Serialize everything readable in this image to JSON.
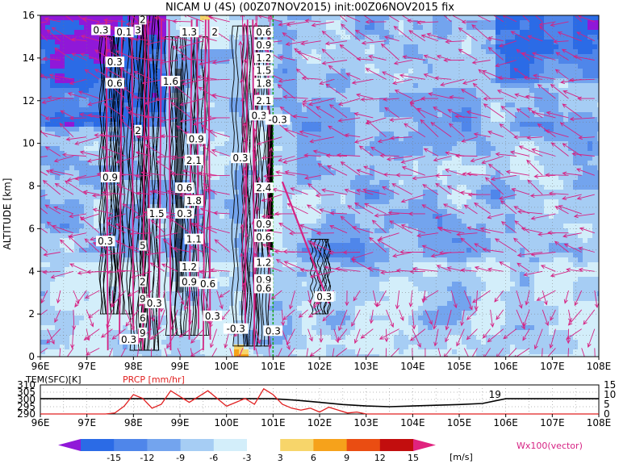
{
  "title": "NICAM U (4S) (00Z07NOV2015) init:00Z06NOV2015 fix",
  "chart_data": [
    {
      "type": "heatmap",
      "panel": "main",
      "ylabel": "ALTITUDE [km]",
      "x_ticks": [
        "96E",
        "97E",
        "98E",
        "99E",
        "100E",
        "101E",
        "102E",
        "103E",
        "104E",
        "105E",
        "106E",
        "107E",
        "108E"
      ],
      "y_ticks": [
        "0",
        "2",
        "4",
        "6",
        "8",
        "10",
        "12",
        "14",
        "16"
      ],
      "xlim": [
        96,
        108
      ],
      "ylim": [
        0,
        16
      ],
      "grid": true,
      "green_line_lon": 101.0,
      "shaded_field": "U [m/s]",
      "vectors": "Wx100 (vector)",
      "contour_labels": [
        {
          "lon": 97.3,
          "alt": 15.3,
          "text": "0.3"
        },
        {
          "lon": 97.8,
          "alt": 15.2,
          "text": "0.1"
        },
        {
          "lon": 98.1,
          "alt": 15.3,
          "text": "3"
        },
        {
          "lon": 98.2,
          "alt": 15.8,
          "text": "2"
        },
        {
          "lon": 99.2,
          "alt": 15.2,
          "text": "1.3"
        },
        {
          "lon": 99.75,
          "alt": 15.2,
          "text": "2"
        },
        {
          "lon": 97.6,
          "alt": 13.8,
          "text": "0.3"
        },
        {
          "lon": 97.6,
          "alt": 12.8,
          "text": "0.6"
        },
        {
          "lon": 98.8,
          "alt": 12.9,
          "text": "1.6"
        },
        {
          "lon": 100.8,
          "alt": 15.2,
          "text": "0.6"
        },
        {
          "lon": 100.8,
          "alt": 14.6,
          "text": "0.9"
        },
        {
          "lon": 100.8,
          "alt": 14.0,
          "text": "1.2"
        },
        {
          "lon": 100.8,
          "alt": 13.4,
          "text": "1.5"
        },
        {
          "lon": 100.8,
          "alt": 12.8,
          "text": "1.8"
        },
        {
          "lon": 100.8,
          "alt": 12.0,
          "text": "2.1"
        },
        {
          "lon": 100.7,
          "alt": 11.3,
          "text": "0.3"
        },
        {
          "lon": 101.1,
          "alt": 11.1,
          "text": "-0.3"
        },
        {
          "lon": 98.1,
          "alt": 10.6,
          "text": "2"
        },
        {
          "lon": 99.35,
          "alt": 10.2,
          "text": "0.9"
        },
        {
          "lon": 99.3,
          "alt": 9.2,
          "text": "2.1"
        },
        {
          "lon": 100.3,
          "alt": 9.3,
          "text": "0.3"
        },
        {
          "lon": 97.5,
          "alt": 8.4,
          "text": "0.9"
        },
        {
          "lon": 99.1,
          "alt": 7.9,
          "text": "0.6"
        },
        {
          "lon": 100.8,
          "alt": 7.9,
          "text": "2.4"
        },
        {
          "lon": 99.3,
          "alt": 7.3,
          "text": "1.8"
        },
        {
          "lon": 99.1,
          "alt": 6.7,
          "text": "0.3"
        },
        {
          "lon": 98.5,
          "alt": 6.7,
          "text": "1.5"
        },
        {
          "lon": 100.8,
          "alt": 6.2,
          "text": "0.9"
        },
        {
          "lon": 99.3,
          "alt": 5.5,
          "text": "1.1"
        },
        {
          "lon": 100.8,
          "alt": 5.6,
          "text": "0.6"
        },
        {
          "lon": 97.4,
          "alt": 5.4,
          "text": "0.3"
        },
        {
          "lon": 98.2,
          "alt": 5.2,
          "text": "5"
        },
        {
          "lon": 99.2,
          "alt": 4.2,
          "text": "1.2"
        },
        {
          "lon": 100.8,
          "alt": 4.4,
          "text": "1.2"
        },
        {
          "lon": 98.2,
          "alt": 3.5,
          "text": "2"
        },
        {
          "lon": 99.2,
          "alt": 3.5,
          "text": "0.9"
        },
        {
          "lon": 99.6,
          "alt": 3.4,
          "text": "0.6"
        },
        {
          "lon": 100.8,
          "alt": 3.6,
          "text": "0.9"
        },
        {
          "lon": 98.2,
          "alt": 2.7,
          "text": "9"
        },
        {
          "lon": 98.45,
          "alt": 2.5,
          "text": "0.3"
        },
        {
          "lon": 100.8,
          "alt": 3.2,
          "text": "0.6"
        },
        {
          "lon": 102.1,
          "alt": 2.8,
          "text": "0.3"
        },
        {
          "lon": 98.2,
          "alt": 1.8,
          "text": "6"
        },
        {
          "lon": 99.7,
          "alt": 1.9,
          "text": "0.3"
        },
        {
          "lon": 98.2,
          "alt": 1.1,
          "text": "9"
        },
        {
          "lon": 97.9,
          "alt": 0.8,
          "text": "0.3"
        },
        {
          "lon": 100.2,
          "alt": 1.3,
          "text": "-0.3"
        },
        {
          "lon": 101.0,
          "alt": 1.2,
          "text": "0.3"
        }
      ]
    },
    {
      "type": "line",
      "panel": "surface",
      "labels": {
        "temp": "TEM(SFC)[K]",
        "prcp": "PRCP [mm/hr]"
      },
      "x_ticks": [
        "96E",
        "97E",
        "98E",
        "99E",
        "100E",
        "101E",
        "102E",
        "103E",
        "104E",
        "105E",
        "106E",
        "107E",
        "108E"
      ],
      "left_ticks": [
        "310",
        "305",
        "300",
        "295",
        "290"
      ],
      "right_ticks": [
        "15",
        "10",
        "5",
        "0"
      ],
      "xlim": [
        96,
        108
      ],
      "temp_ylim": [
        290,
        310
      ],
      "prcp_ylim": [
        0,
        15
      ],
      "series": [
        {
          "name": "TEM(SFC)[K]",
          "color": "#000000",
          "x": [
            96,
            101,
            101.5,
            102,
            102.5,
            103,
            103.5,
            104,
            104.5,
            105,
            105.5,
            106,
            108
          ],
          "y": [
            300.5,
            300.5,
            299.5,
            298.0,
            296.5,
            295.5,
            295.0,
            295.5,
            296.0,
            296.5,
            297.2,
            300.5,
            300.5
          ]
        },
        {
          "name": "PRCP [mm/hr]",
          "color": "#e02020",
          "x": [
            96,
            97.4,
            97.6,
            97.8,
            98.0,
            98.2,
            98.4,
            98.6,
            98.8,
            99.0,
            99.2,
            99.4,
            99.6,
            99.8,
            100.0,
            100.2,
            100.4,
            100.6,
            100.8,
            101.0,
            101.2,
            101.4,
            101.6,
            101.8,
            102.0,
            102.2,
            102.4,
            102.6,
            102.8,
            103.0,
            108
          ],
          "y": [
            0,
            0,
            0.5,
            4,
            10,
            8,
            3,
            5,
            12,
            9,
            6,
            9,
            12,
            8,
            4,
            6,
            8,
            5,
            13,
            10,
            5,
            3,
            2,
            3,
            1,
            3.5,
            2,
            0.5,
            1,
            0,
            0
          ]
        }
      ],
      "value_label": {
        "lon": 105.9,
        "text": "19"
      }
    }
  ],
  "colorbar": {
    "ticks": [
      "-15",
      "-12",
      "-9",
      "-6",
      "-3",
      "3",
      "6",
      "9",
      "12",
      "15"
    ],
    "colors": [
      "#9018d8",
      "#2b6be6",
      "#4f86ea",
      "#73a4ee",
      "#a6cdf4",
      "#d3eefa",
      "#ffffff",
      "#f7d56a",
      "#f6a21b",
      "#ea4d12",
      "#c20e0e",
      "#b00000"
    ],
    "end_low_color": "#9018d8",
    "end_high_color": "#e0237e",
    "unit": "[m/s]"
  },
  "legend_text": "Wx100(vector)",
  "colors": {
    "vector": "#d62283",
    "green_line": "#19a519",
    "prcp_line": "#e02020"
  }
}
